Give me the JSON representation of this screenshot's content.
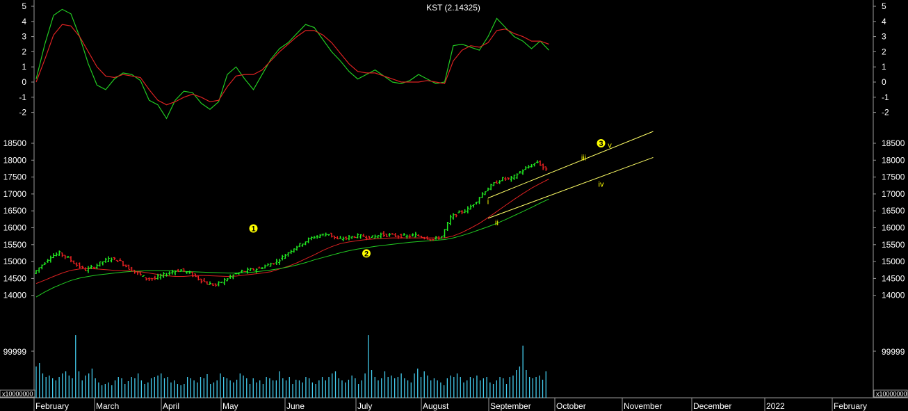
{
  "chart_data": {
    "type": "line",
    "panels": {
      "kst": {
        "title": "KST (2.14325)",
        "y_ticks": [
          5,
          4,
          3,
          2,
          1,
          0,
          -1,
          -2
        ],
        "ylim": [
          -2.5,
          5.2
        ],
        "series": [
          {
            "values": [
              0.2,
              2.5,
              4.4,
              4.8,
              4.5,
              3.0,
              1.2,
              -0.2,
              -0.5,
              0.2,
              0.6,
              0.5,
              0.1,
              -1.2,
              -1.5,
              -2.4,
              -1.2,
              -0.6,
              -0.7,
              -1.4,
              -1.8,
              -1.3,
              0.5,
              1.0,
              0.2,
              -0.5,
              0.5,
              1.5,
              2.2,
              2.6,
              3.2,
              3.8,
              3.6,
              2.8,
              2.0,
              1.4,
              0.7,
              0.2,
              0.5,
              0.8,
              0.4,
              0.0,
              -0.1,
              0.1,
              0.5,
              0.2,
              -0.1,
              0.0,
              2.4,
              2.5,
              2.3,
              2.1,
              3.0,
              4.2,
              3.6,
              3.0,
              2.7,
              2.2,
              2.7,
              2.1
            ],
            "color": "#22cc22"
          },
          {
            "values": [
              0.0,
              1.5,
              3.1,
              3.8,
              3.7,
              3.0,
              2.0,
              1.0,
              0.4,
              0.3,
              0.5,
              0.4,
              0.3,
              -0.5,
              -1.2,
              -1.5,
              -1.3,
              -1.0,
              -0.8,
              -1.0,
              -1.3,
              -1.2,
              -0.3,
              0.4,
              0.5,
              0.5,
              0.8,
              1.4,
              2.0,
              2.5,
              3.0,
              3.4,
              3.4,
              3.1,
              2.6,
              1.9,
              1.2,
              0.7,
              0.6,
              0.6,
              0.4,
              0.2,
              0.0,
              0.0,
              0.0,
              0.1,
              0.0,
              -0.1,
              1.4,
              2.1,
              2.4,
              2.3,
              2.6,
              3.4,
              3.5,
              3.2,
              3.0,
              2.7,
              2.7,
              2.5
            ],
            "color": "#dd2222"
          }
        ]
      },
      "price": {
        "y_ticks": [
          18500,
          18000,
          17500,
          17000,
          16500,
          16000,
          15500,
          15000,
          14500,
          14000
        ],
        "ylim": [
          13800,
          18800
        ],
        "close": [
          14650,
          14900,
          15150,
          15250,
          15100,
          14900,
          14750,
          14850,
          15000,
          15100,
          15000,
          14800,
          14650,
          14500,
          14500,
          14600,
          14700,
          14750,
          14650,
          14500,
          14350,
          14300,
          14450,
          14600,
          14700,
          14750,
          14800,
          14900,
          15000,
          15200,
          15400,
          15550,
          15700,
          15780,
          15820,
          15650,
          15700,
          15750,
          15750,
          15720,
          15800,
          15780,
          15760,
          15740,
          15780,
          15720,
          15650,
          15750,
          16300,
          16450,
          16550,
          16800,
          17100,
          17300,
          17450,
          17450,
          17650,
          17800,
          17950,
          17700
        ],
        "moving_averages": [
          {
            "values": [
              14350,
              14450,
              14560,
              14660,
              14740,
              14780,
              14790,
              14780,
              14760,
              14740,
              14730,
              14720,
              14700,
              14660,
              14620,
              14580,
              14560,
              14560,
              14580,
              14590,
              14580,
              14570,
              14560,
              14570,
              14600,
              14630,
              14660,
              14700,
              14780,
              14860,
              14960,
              15080,
              15200,
              15330,
              15440,
              15530,
              15580,
              15620,
              15650,
              15670,
              15690,
              15700,
              15700,
              15700,
              15700,
              15700,
              15700,
              15700,
              15760,
              15860,
              15990,
              16130,
              16300,
              16480,
              16660,
              16840,
              17010,
              17170,
              17310,
              17440
            ],
            "color": "#dd2222"
          },
          {
            "values": [
              13950,
              14100,
              14230,
              14340,
              14440,
              14510,
              14560,
              14600,
              14630,
              14660,
              14690,
              14710,
              14720,
              14730,
              14730,
              14730,
              14720,
              14710,
              14700,
              14690,
              14680,
              14670,
              14660,
              14660,
              14670,
              14690,
              14720,
              14750,
              14790,
              14840,
              14900,
              14970,
              15050,
              15120,
              15190,
              15260,
              15320,
              15370,
              15410,
              15450,
              15480,
              15510,
              15540,
              15570,
              15590,
              15610,
              15630,
              15650,
              15700,
              15770,
              15850,
              15940,
              16030,
              16130,
              16240,
              16360,
              16480,
              16600,
              16730,
              16850
            ],
            "color": "#22cc22"
          }
        ],
        "channel": {
          "upper": [
            [
              67,
              16880
            ],
            [
              86,
              18850
            ]
          ],
          "lower": [
            [
              67,
              16280
            ],
            [
              86,
              18080
            ]
          ]
        },
        "wave_labels": [
          {
            "text": "1",
            "x": 40,
            "y": 15980,
            "circled": true
          },
          {
            "text": "2",
            "x": 53,
            "y": 15240,
            "circled": true
          },
          {
            "text": "3",
            "x": 80,
            "y": 18500,
            "circled": true
          },
          {
            "text": "i",
            "x": 67,
            "y": 16780
          },
          {
            "text": "ii",
            "x": 68,
            "y": 16150
          },
          {
            "text": "iii",
            "x": 78,
            "y": 18080
          },
          {
            "text": "iv",
            "x": 80,
            "y": 17300
          },
          {
            "text": "v",
            "x": 81,
            "y": 18450
          }
        ]
      },
      "volume": {
        "y_tick": "99999",
        "multiplier_label": "x10000000",
        "values": [
          45,
          50,
          35,
          30,
          32,
          28,
          25,
          30,
          35,
          38,
          32,
          28,
          90,
          38,
          25,
          32,
          35,
          42,
          28,
          22,
          18,
          20,
          22,
          18,
          25,
          30,
          28,
          20,
          24,
          30,
          28,
          35,
          25,
          20,
          22,
          28,
          30,
          32,
          35,
          28,
          30,
          22,
          25,
          20,
          18,
          20,
          30,
          28,
          25,
          22,
          30,
          28,
          34,
          20,
          22,
          25,
          35,
          30,
          28,
          25,
          22,
          26,
          35,
          32,
          28,
          20,
          28,
          22,
          25,
          20,
          30,
          28,
          25,
          25,
          38,
          28,
          25,
          30,
          20,
          26,
          25,
          22,
          30,
          28,
          22,
          20,
          25,
          30,
          25,
          30,
          35,
          38,
          28,
          25,
          22,
          26,
          32,
          28,
          20,
          25,
          35,
          90,
          40,
          30,
          25,
          28,
          38,
          30,
          32,
          28,
          30,
          35,
          28,
          25,
          22,
          35,
          42,
          30,
          38,
          32,
          25,
          28,
          25,
          22,
          18,
          28,
          32,
          30,
          35,
          30,
          22,
          25,
          30,
          28,
          32,
          25,
          28,
          30,
          22,
          20,
          25,
          30,
          28,
          20,
          30,
          32,
          40,
          45,
          75,
          40,
          30,
          28,
          30,
          32,
          26,
          38
        ],
        "color": "#44ccee"
      }
    },
    "x_labels": [
      "February",
      "March",
      "April",
      "May",
      "June",
      "July",
      "August",
      "September",
      "October",
      "November",
      "December",
      "2022",
      "February"
    ]
  }
}
